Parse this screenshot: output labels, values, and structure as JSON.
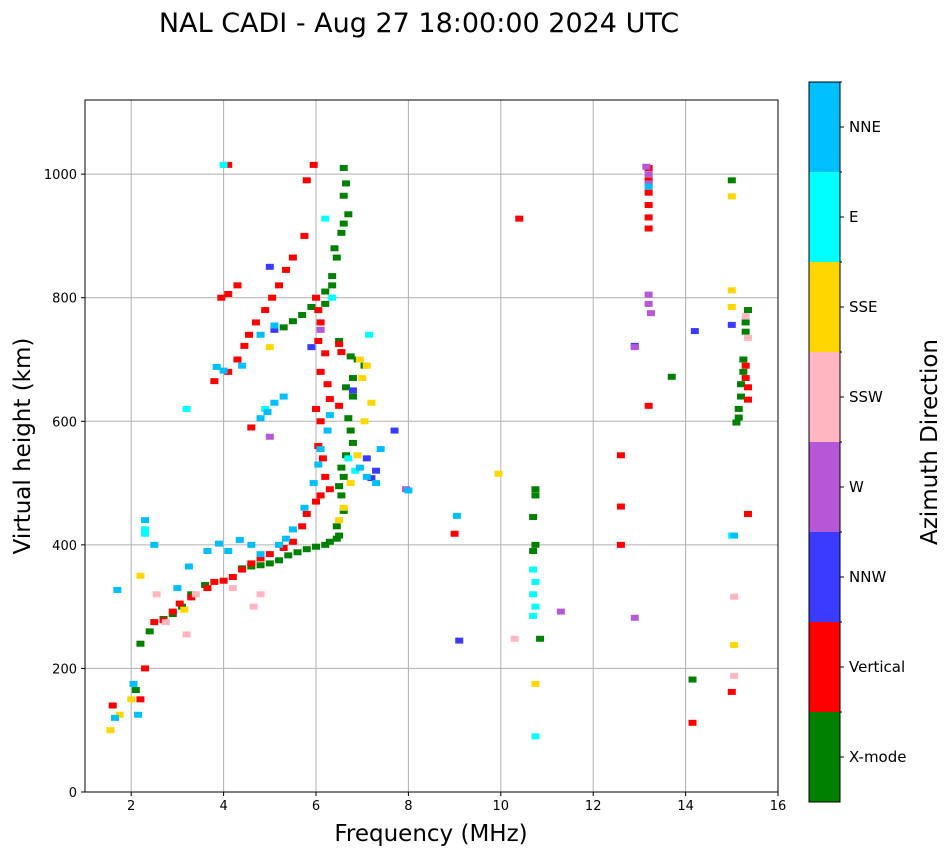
{
  "chart_data": {
    "type": "scatter",
    "title": "NAL CADI - Aug 27 18:00:00 2024 UTC",
    "xlabel": "Frequency (MHz)",
    "ylabel": "Virtual height (km)",
    "xlim": [
      1,
      16
    ],
    "ylim": [
      0,
      1120
    ],
    "xticks": [
      2,
      4,
      6,
      8,
      10,
      12,
      14,
      16
    ],
    "yticks": [
      0,
      200,
      400,
      600,
      800,
      1000
    ],
    "grid": true,
    "colorbar": {
      "label": "Azimuth Direction",
      "categories": [
        {
          "name": "X-mode",
          "color": "#008000"
        },
        {
          "name": "Vertical",
          "color": "#ff0000"
        },
        {
          "name": "NNW",
          "color": "#3b3bff"
        },
        {
          "name": "W",
          "color": "#b557d6"
        },
        {
          "name": "SSW",
          "color": "#ffb6c1"
        },
        {
          "name": "SSE",
          "color": "#ffd700"
        },
        {
          "name": "E",
          "color": "#00ffff"
        },
        {
          "name": "NNE",
          "color": "#00bfff"
        }
      ]
    },
    "series": [
      {
        "name": "X-mode",
        "points": [
          [
            6.6,
            1010
          ],
          [
            6.65,
            985
          ],
          [
            6.6,
            965
          ],
          [
            6.7,
            935
          ],
          [
            6.6,
            920
          ],
          [
            6.55,
            905
          ],
          [
            6.4,
            880
          ],
          [
            6.45,
            865
          ],
          [
            6.35,
            835
          ],
          [
            6.35,
            820
          ],
          [
            6.2,
            810
          ],
          [
            6.2,
            790
          ],
          [
            5.9,
            785
          ],
          [
            5.7,
            772
          ],
          [
            5.5,
            762
          ],
          [
            5.3,
            752
          ],
          [
            6.5,
            730
          ],
          [
            6.75,
            705
          ],
          [
            6.9,
            700
          ],
          [
            7.05,
            690
          ],
          [
            6.8,
            670
          ],
          [
            6.65,
            655
          ],
          [
            6.8,
            640
          ],
          [
            6.7,
            605
          ],
          [
            6.75,
            585
          ],
          [
            6.8,
            565
          ],
          [
            6.65,
            545
          ],
          [
            6.55,
            525
          ],
          [
            6.6,
            510
          ],
          [
            6.5,
            495
          ],
          [
            6.55,
            480
          ],
          [
            6.6,
            455
          ],
          [
            6.45,
            430
          ],
          [
            6.5,
            415
          ],
          [
            6.45,
            410
          ],
          [
            6.3,
            405
          ],
          [
            6.2,
            400
          ],
          [
            6.0,
            397
          ],
          [
            5.8,
            393
          ],
          [
            5.6,
            388
          ],
          [
            5.4,
            383
          ],
          [
            5.2,
            375
          ],
          [
            5.0,
            370
          ],
          [
            4.8,
            367
          ],
          [
            4.6,
            365
          ],
          [
            4.4,
            362
          ],
          [
            3.6,
            335
          ],
          [
            3.3,
            320
          ],
          [
            3.1,
            300
          ],
          [
            2.9,
            288
          ],
          [
            2.7,
            280
          ],
          [
            2.4,
            260
          ],
          [
            2.2,
            240
          ],
          [
            2.1,
            165
          ],
          [
            10.75,
            490
          ],
          [
            10.75,
            480
          ],
          [
            10.7,
            445
          ],
          [
            10.75,
            400
          ],
          [
            10.7,
            390
          ],
          [
            10.85,
            248
          ],
          [
            13.7,
            672
          ],
          [
            14.15,
            182
          ],
          [
            15.0,
            990
          ],
          [
            15.1,
            598
          ],
          [
            15.15,
            606
          ],
          [
            15.15,
            620
          ],
          [
            15.2,
            640
          ],
          [
            15.2,
            660
          ],
          [
            15.25,
            680
          ],
          [
            15.25,
            700
          ],
          [
            15.3,
            745
          ],
          [
            15.3,
            760
          ],
          [
            15.35,
            780
          ]
        ]
      },
      {
        "name": "Vertical",
        "points": [
          [
            4.1,
            1015
          ],
          [
            5.95,
            1015
          ],
          [
            5.8,
            990
          ],
          [
            5.75,
            900
          ],
          [
            5.5,
            865
          ],
          [
            5.35,
            845
          ],
          [
            5.2,
            820
          ],
          [
            5.05,
            800
          ],
          [
            4.9,
            780
          ],
          [
            4.7,
            760
          ],
          [
            4.55,
            740
          ],
          [
            4.45,
            722
          ],
          [
            4.3,
            700
          ],
          [
            4.1,
            680
          ],
          [
            3.8,
            665
          ],
          [
            3.95,
            800
          ],
          [
            4.1,
            806
          ],
          [
            6.0,
            800
          ],
          [
            6.05,
            780
          ],
          [
            6.1,
            760
          ],
          [
            6.05,
            730
          ],
          [
            6.2,
            710
          ],
          [
            6.1,
            680
          ],
          [
            6.25,
            660
          ],
          [
            6.3,
            636
          ],
          [
            6.5,
            625
          ],
          [
            6.0,
            620
          ],
          [
            6.1,
            600
          ],
          [
            6.05,
            560
          ],
          [
            6.15,
            540
          ],
          [
            6.2,
            510
          ],
          [
            6.3,
            490
          ],
          [
            6.1,
            480
          ],
          [
            6.0,
            470
          ],
          [
            5.8,
            450
          ],
          [
            5.7,
            430
          ],
          [
            5.5,
            405
          ],
          [
            5.3,
            395
          ],
          [
            5.0,
            385
          ],
          [
            4.8,
            378
          ],
          [
            4.6,
            370
          ],
          [
            4.4,
            360
          ],
          [
            4.2,
            348
          ],
          [
            4.0,
            342
          ],
          [
            3.8,
            340
          ],
          [
            3.65,
            330
          ],
          [
            3.3,
            315
          ],
          [
            3.05,
            305
          ],
          [
            2.9,
            292
          ],
          [
            2.7,
            278
          ],
          [
            2.5,
            275
          ],
          [
            2.3,
            200
          ],
          [
            2.2,
            150
          ],
          [
            1.6,
            140
          ],
          [
            4.6,
            590
          ],
          [
            4.3,
            820
          ],
          [
            6.5,
            725
          ],
          [
            6.55,
            712
          ],
          [
            10.4,
            928
          ],
          [
            12.6,
            545
          ],
          [
            12.6,
            462
          ],
          [
            12.6,
            400
          ],
          [
            9.0,
            418
          ],
          [
            13.2,
            1010
          ],
          [
            13.2,
            990
          ],
          [
            13.2,
            970
          ],
          [
            13.2,
            950
          ],
          [
            13.2,
            930
          ],
          [
            13.2,
            912
          ],
          [
            13.2,
            625
          ],
          [
            15.3,
            690
          ],
          [
            15.3,
            670
          ],
          [
            15.35,
            655
          ],
          [
            15.35,
            635
          ],
          [
            14.15,
            112
          ],
          [
            15.35,
            450
          ],
          [
            15.0,
            162
          ]
        ]
      },
      {
        "name": "NNW",
        "points": [
          [
            5.0,
            850
          ],
          [
            5.1,
            748
          ],
          [
            5.9,
            720
          ],
          [
            6.8,
            650
          ],
          [
            7.1,
            540
          ],
          [
            7.2,
            508
          ],
          [
            7.3,
            520
          ],
          [
            7.7,
            585
          ],
          [
            14.2,
            746
          ],
          [
            15.0,
            756
          ],
          [
            9.1,
            245
          ],
          [
            12.9,
            722
          ]
        ]
      },
      {
        "name": "W",
        "points": [
          [
            13.15,
            1012
          ],
          [
            13.2,
            1000
          ],
          [
            13.2,
            985
          ],
          [
            13.2,
            805
          ],
          [
            13.2,
            790
          ],
          [
            13.25,
            775
          ],
          [
            12.9,
            720
          ],
          [
            12.9,
            282
          ],
          [
            11.3,
            292
          ],
          [
            7.95,
            490
          ],
          [
            6.1,
            748
          ],
          [
            5.0,
            575
          ]
        ]
      },
      {
        "name": "SSW",
        "points": [
          [
            2.55,
            320
          ],
          [
            2.75,
            275
          ],
          [
            3.2,
            255
          ],
          [
            3.4,
            320
          ],
          [
            4.2,
            330
          ],
          [
            4.8,
            320
          ],
          [
            4.65,
            300
          ],
          [
            10.3,
            248
          ],
          [
            15.05,
            316
          ],
          [
            15.05,
            188
          ],
          [
            15.3,
            770
          ],
          [
            15.35,
            735
          ]
        ]
      },
      {
        "name": "SSE",
        "points": [
          [
            6.5,
            440
          ],
          [
            6.6,
            460
          ],
          [
            6.75,
            500
          ],
          [
            6.9,
            545
          ],
          [
            7.05,
            600
          ],
          [
            7.2,
            630
          ],
          [
            7.0,
            670
          ],
          [
            7.1,
            690
          ],
          [
            6.95,
            700
          ],
          [
            5.0,
            720
          ],
          [
            9.95,
            515
          ],
          [
            10.75,
            175
          ],
          [
            15.0,
            964
          ],
          [
            15.0,
            812
          ],
          [
            15.0,
            785
          ],
          [
            15.05,
            238
          ],
          [
            1.55,
            100
          ],
          [
            1.75,
            125
          ],
          [
            2.2,
            350
          ],
          [
            2.0,
            150
          ],
          [
            3.15,
            295
          ]
        ]
      },
      {
        "name": "E",
        "points": [
          [
            10.7,
            360
          ],
          [
            10.75,
            340
          ],
          [
            10.7,
            320
          ],
          [
            10.75,
            300
          ],
          [
            10.7,
            285
          ],
          [
            10.75,
            90
          ],
          [
            6.35,
            800
          ],
          [
            6.2,
            928
          ],
          [
            7.15,
            740
          ],
          [
            6.7,
            540
          ],
          [
            6.85,
            520
          ],
          [
            4.9,
            620
          ],
          [
            15.0,
            415
          ],
          [
            2.3,
            418
          ],
          [
            2.3,
            425
          ],
          [
            3.2,
            620
          ],
          [
            4.0,
            1015
          ]
        ]
      },
      {
        "name": "NNE",
        "points": [
          [
            2.05,
            175
          ],
          [
            2.15,
            125
          ],
          [
            1.65,
            120
          ],
          [
            1.7,
            327
          ],
          [
            2.3,
            440
          ],
          [
            2.5,
            400
          ],
          [
            3.0,
            330
          ],
          [
            3.25,
            365
          ],
          [
            3.65,
            390
          ],
          [
            3.9,
            402
          ],
          [
            4.1,
            390
          ],
          [
            4.35,
            408
          ],
          [
            4.6,
            400
          ],
          [
            4.8,
            385
          ],
          [
            5.2,
            400
          ],
          [
            5.35,
            410
          ],
          [
            5.5,
            425
          ],
          [
            5.75,
            460
          ],
          [
            5.95,
            500
          ],
          [
            6.05,
            530
          ],
          [
            6.1,
            555
          ],
          [
            6.25,
            585
          ],
          [
            6.3,
            610
          ],
          [
            5.3,
            640
          ],
          [
            5.1,
            630
          ],
          [
            4.95,
            615
          ],
          [
            4.8,
            605
          ],
          [
            3.85,
            688
          ],
          [
            4.0,
            682
          ],
          [
            4.4,
            690
          ],
          [
            4.8,
            740
          ],
          [
            5.1,
            755
          ],
          [
            6.95,
            525
          ],
          [
            7.1,
            510
          ],
          [
            7.3,
            500
          ],
          [
            7.4,
            555
          ],
          [
            8.0,
            488
          ],
          [
            9.05,
            447
          ],
          [
            13.2,
            980
          ],
          [
            15.05,
            415
          ]
        ]
      }
    ]
  }
}
